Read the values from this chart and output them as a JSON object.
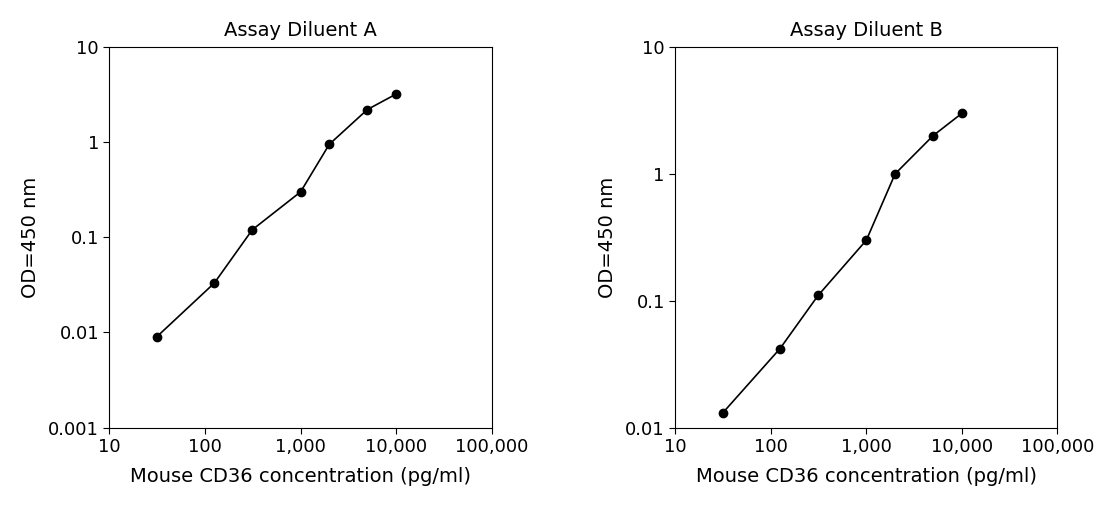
{
  "panel_A": {
    "title": "Assay Diluent A",
    "x": [
      31.25,
      125,
      312.5,
      1000,
      2000,
      5000,
      10000
    ],
    "y": [
      0.009,
      0.033,
      0.12,
      0.3,
      0.95,
      2.2,
      3.2
    ],
    "xlabel": "Mouse CD36 concentration (pg/ml)",
    "ylabel": "OD=450 nm",
    "xlim": [
      10,
      100000
    ],
    "ylim": [
      0.001,
      10
    ],
    "y_ticks": [
      0.001,
      0.01,
      0.1,
      1,
      10
    ],
    "y_tick_labels": [
      "0.001",
      "0.01",
      "0.1",
      "1",
      "10"
    ]
  },
  "panel_B": {
    "title": "Assay Diluent B",
    "x": [
      31.25,
      125,
      312.5,
      1000,
      2000,
      5000,
      10000
    ],
    "y": [
      0.013,
      0.042,
      0.11,
      0.3,
      1.0,
      2.0,
      3.0
    ],
    "xlabel": "Mouse CD36 concentration (pg/ml)",
    "ylabel": "OD=450 nm",
    "xlim": [
      10,
      100000
    ],
    "ylim": [
      0.01,
      10
    ],
    "y_ticks": [
      0.01,
      0.1,
      1,
      10
    ],
    "y_tick_labels": [
      "0.01",
      "0.1",
      "1",
      "10"
    ]
  },
  "line_color": "#000000",
  "marker": "o",
  "marker_size": 6,
  "marker_facecolor": "#000000",
  "line_width": 1.2,
  "title_fontsize": 14,
  "label_fontsize": 14,
  "tick_fontsize": 13,
  "background_color": "#ffffff",
  "x_ticks": [
    10,
    100,
    1000,
    10000,
    100000
  ],
  "x_tick_labels": [
    "10",
    "100",
    "1,000",
    "10,000",
    "100,000"
  ]
}
